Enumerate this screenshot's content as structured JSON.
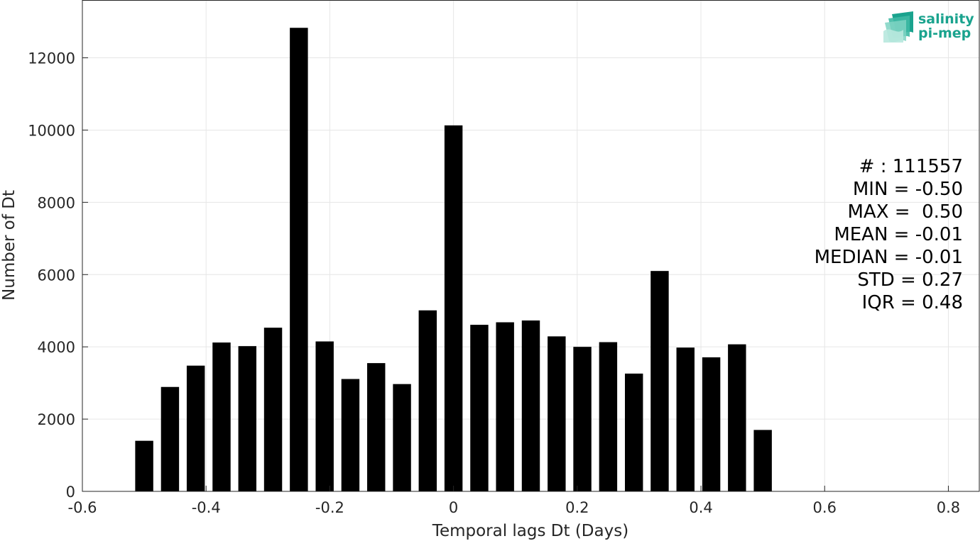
{
  "chart_data": {
    "type": "bar",
    "xlabel": "Temporal lags Dt (Days)",
    "ylabel": "Number of Dt",
    "xlim": [
      -0.6,
      0.85
    ],
    "ylim": [
      0,
      13600
    ],
    "xticks": [
      -0.6,
      -0.4,
      -0.2,
      0,
      0.2,
      0.4,
      0.6,
      0.8
    ],
    "xtick_labels": [
      "-0.6",
      "-0.4",
      "-0.2",
      "0",
      "0.2",
      "0.4",
      "0.6",
      "0.8"
    ],
    "yticks": [
      0,
      2000,
      4000,
      6000,
      8000,
      10000,
      12000
    ],
    "ytick_labels": [
      "0",
      "2000",
      "4000",
      "6000",
      "8000",
      "10000",
      "12000"
    ],
    "grid": true,
    "bar_color": "#000000",
    "bar_width": 0.0292,
    "x": [
      -0.5,
      -0.4583,
      -0.4167,
      -0.375,
      -0.3333,
      -0.2917,
      -0.25,
      -0.2083,
      -0.1667,
      -0.125,
      -0.0833,
      -0.0417,
      0,
      0.0417,
      0.0833,
      0.125,
      0.1667,
      0.2083,
      0.25,
      0.2917,
      0.3333,
      0.375,
      0.4167,
      0.4583,
      0.5
    ],
    "values": [
      1400,
      2890,
      3480,
      4120,
      4020,
      4530,
      12830,
      4150,
      3110,
      3550,
      2970,
      5010,
      10130,
      4610,
      4680,
      4730,
      4290,
      4000,
      4130,
      3260,
      6100,
      3980,
      3710,
      4070,
      1700
    ]
  },
  "stats": {
    "count": "# : 111557",
    "min": "MIN = -0.50",
    "max": "MAX =  0.50",
    "mean": "MEAN = -0.01",
    "median": "MEDIAN = -0.01",
    "std": "STD = 0.27",
    "iqr": "IQR = 0.48"
  },
  "logo": {
    "line1": "salinity",
    "line2": "pi-mep",
    "color": "#1aa38e"
  }
}
